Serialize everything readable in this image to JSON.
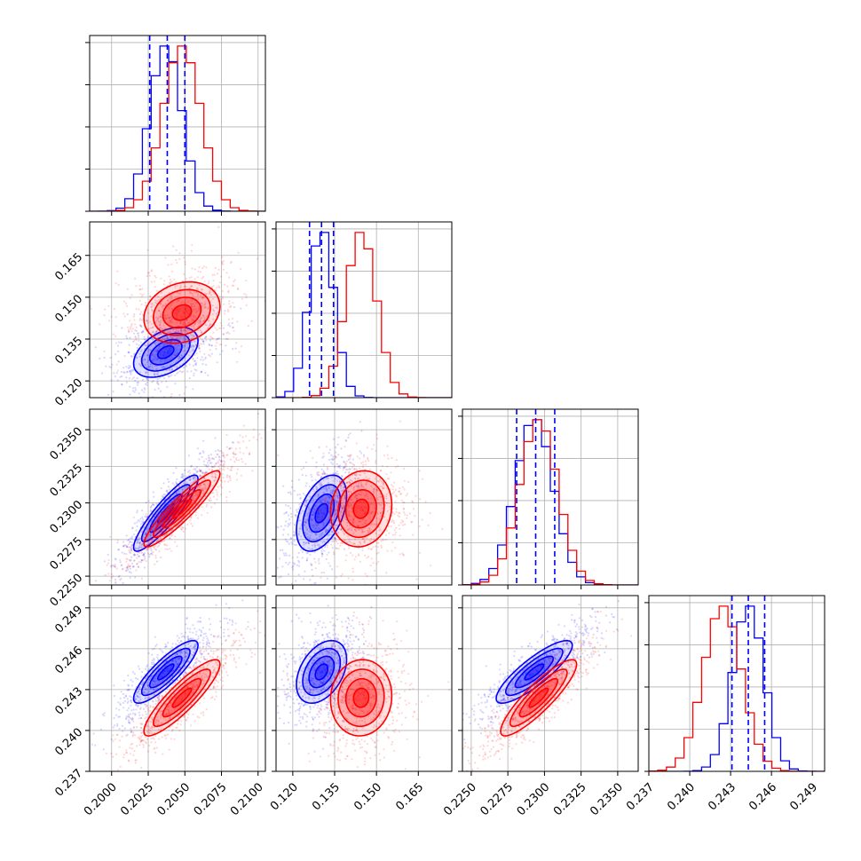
{
  "chart_data": {
    "type": "corner",
    "title": "",
    "series": [
      {
        "name": "",
        "color": "#0000ff",
        "mean": [
          0.2037,
          0.1303,
          0.2293,
          0.2443
        ],
        "sd": [
          0.0011,
          0.0045,
          0.0013,
          0.00115
        ],
        "corr": [
          [
            1,
            0.45,
            0.9,
            0.85
          ],
          [
            0.45,
            1,
            0.45,
            0.4
          ],
          [
            0.9,
            0.45,
            1,
            0.85
          ],
          [
            0.85,
            0.4,
            0.85,
            1
          ]
        ]
      },
      {
        "name": "",
        "color": "#ff0000",
        "mean": [
          0.2048,
          0.1445,
          0.2296,
          0.2424
        ],
        "sd": [
          0.0013,
          0.0055,
          0.0013,
          0.0014
        ],
        "corr": [
          [
            1,
            0.2,
            0.92,
            0.88
          ],
          [
            0.2,
            1,
            0.1,
            0.05
          ],
          [
            0.92,
            0.1,
            1,
            0.88
          ],
          [
            0.88,
            0.05,
            0.88,
            1
          ]
        ]
      }
    ],
    "quantile_lines": {
      "color": "#0000ff",
      "values": [
        [
          0.2026,
          0.2038,
          0.205
        ],
        [
          0.126,
          0.1303,
          0.1346
        ],
        [
          0.2281,
          0.2294,
          0.2307
        ],
        [
          0.2431,
          0.2443,
          0.2455
        ]
      ]
    },
    "axes": [
      {
        "range": [
          0.1985,
          0.2105
        ],
        "ticks": [
          "0.2000",
          "0.2025",
          "0.2050",
          "0.2075",
          "0.2100"
        ]
      },
      {
        "range": [
          0.114,
          0.177
        ],
        "ticks": [
          "0.120",
          "0.135",
          "0.150",
          "0.165"
        ]
      },
      {
        "range": [
          0.2244,
          0.2364
        ],
        "ticks": [
          "0.2250",
          "0.2275",
          "0.2300",
          "0.2325",
          "0.2350"
        ]
      },
      {
        "range": [
          0.237,
          0.2499
        ],
        "ticks": [
          "0.237",
          "0.240",
          "0.243",
          "0.246",
          "0.249"
        ]
      }
    ],
    "grid": true,
    "legend": "none"
  }
}
